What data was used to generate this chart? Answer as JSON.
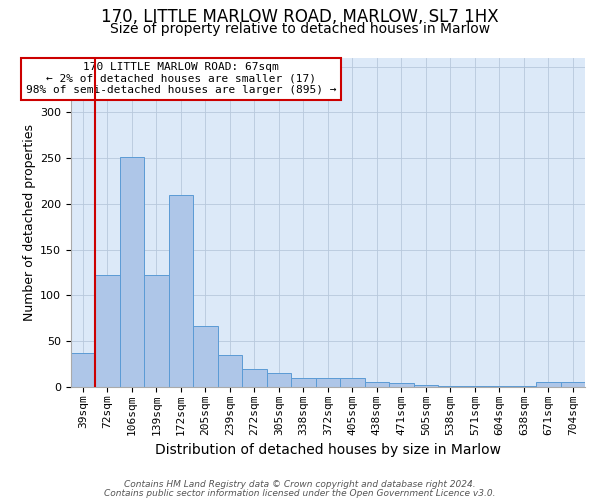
{
  "title1": "170, LITTLE MARLOW ROAD, MARLOW, SL7 1HX",
  "title2": "Size of property relative to detached houses in Marlow",
  "xlabel": "Distribution of detached houses by size in Marlow",
  "ylabel": "Number of detached properties",
  "categories": [
    "39sqm",
    "72sqm",
    "106sqm",
    "139sqm",
    "172sqm",
    "205sqm",
    "239sqm",
    "272sqm",
    "305sqm",
    "338sqm",
    "372sqm",
    "405sqm",
    "438sqm",
    "471sqm",
    "505sqm",
    "538sqm",
    "571sqm",
    "604sqm",
    "638sqm",
    "671sqm",
    "704sqm"
  ],
  "values": [
    37,
    122,
    251,
    122,
    210,
    67,
    35,
    20,
    15,
    10,
    10,
    10,
    6,
    4,
    2,
    1,
    1,
    1,
    1,
    5,
    5
  ],
  "bar_color": "#aec6e8",
  "bar_edge_color": "#5b9bd5",
  "vline_x_index": 0.5,
  "vline_color": "#cc0000",
  "annotation_text": "170 LITTLE MARLOW ROAD: 67sqm\n← 2% of detached houses are smaller (17)\n98% of semi-detached houses are larger (895) →",
  "annotation_box_color": "#ffffff",
  "annotation_box_edge": "#cc0000",
  "ylim": [
    0,
    360
  ],
  "yticks": [
    0,
    50,
    100,
    150,
    200,
    250,
    300,
    350
  ],
  "footer1": "Contains HM Land Registry data © Crown copyright and database right 2024.",
  "footer2": "Contains public sector information licensed under the Open Government Licence v3.0.",
  "bg_color": "#dce9f8",
  "title1_fontsize": 12,
  "title2_fontsize": 10,
  "xlabel_fontsize": 10,
  "ylabel_fontsize": 9,
  "tick_fontsize": 8,
  "annot_fontsize": 8,
  "footer_fontsize": 6.5
}
